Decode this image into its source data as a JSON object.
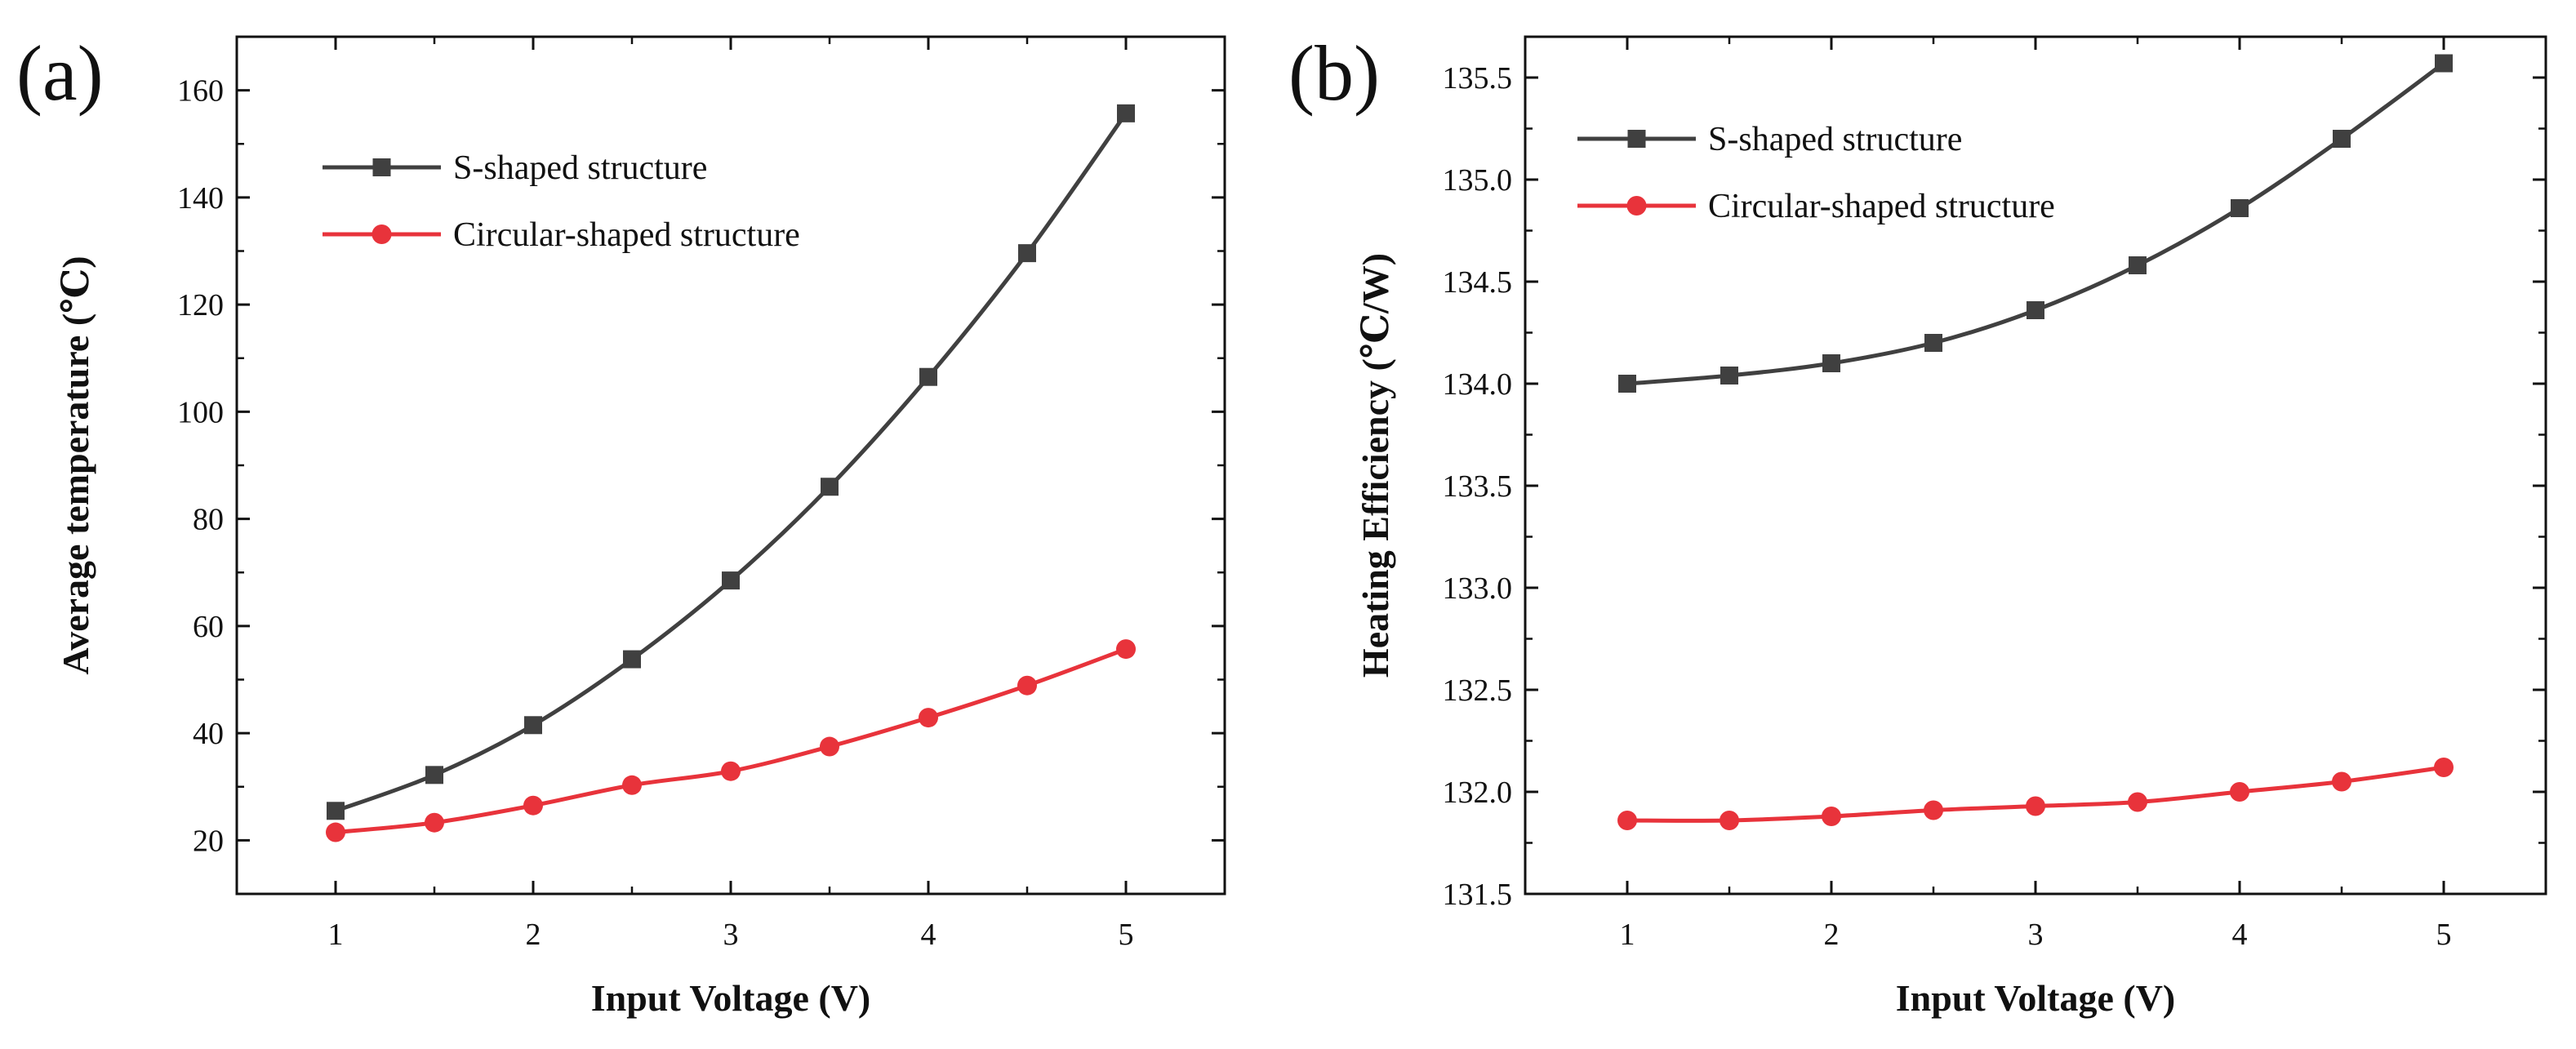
{
  "chart_data": [
    {
      "type": "line",
      "panel_label": "(a)",
      "title": "",
      "xlabel": "Input Voltage (V)",
      "ylabel": "Average temperature (℃)",
      "x": [
        1,
        1.5,
        2,
        2.5,
        3,
        3.5,
        4,
        4.5,
        5
      ],
      "xlim": [
        0.5,
        5.5
      ],
      "ylim": [
        10,
        170
      ],
      "xticks": [
        1,
        2,
        3,
        4,
        5
      ],
      "yticks": [
        20,
        40,
        60,
        80,
        100,
        120,
        140,
        160
      ],
      "legend_position": "top-left",
      "series": [
        {
          "name": "S-shaped structure",
          "color": "#404040",
          "marker": "square",
          "values": [
            25.5,
            32.2,
            41.5,
            53.8,
            68.5,
            86.0,
            106.5,
            129.6,
            155.7
          ]
        },
        {
          "name": "Circular-shaped structure",
          "color": "#e8333b",
          "marker": "circle",
          "values": [
            21.5,
            23.3,
            26.5,
            30.3,
            32.9,
            37.5,
            42.9,
            48.9,
            55.7
          ]
        }
      ]
    },
    {
      "type": "line",
      "panel_label": "(b)",
      "title": "",
      "xlabel": "Input Voltage (V)",
      "ylabel": "Heating Efficiency (℃/W)",
      "x": [
        1,
        1.5,
        2,
        2.5,
        3,
        3.5,
        4,
        4.5,
        5
      ],
      "xlim": [
        0.5,
        5.5
      ],
      "ylim": [
        131.5,
        135.7
      ],
      "xticks": [
        1,
        2,
        3,
        4,
        5
      ],
      "yticks": [
        131.5,
        132.0,
        132.5,
        133.0,
        133.5,
        134.0,
        134.5,
        135.0,
        135.5
      ],
      "legend_position": "top-left",
      "series": [
        {
          "name": "S-shaped structure",
          "color": "#404040",
          "marker": "square",
          "values": [
            134.0,
            134.04,
            134.1,
            134.2,
            134.36,
            134.58,
            134.86,
            135.2,
            135.57
          ]
        },
        {
          "name": "Circular-shaped structure",
          "color": "#e8333b",
          "marker": "circle",
          "values": [
            131.86,
            131.86,
            131.88,
            131.91,
            131.93,
            131.95,
            132.0,
            132.05,
            132.12
          ]
        }
      ]
    }
  ]
}
